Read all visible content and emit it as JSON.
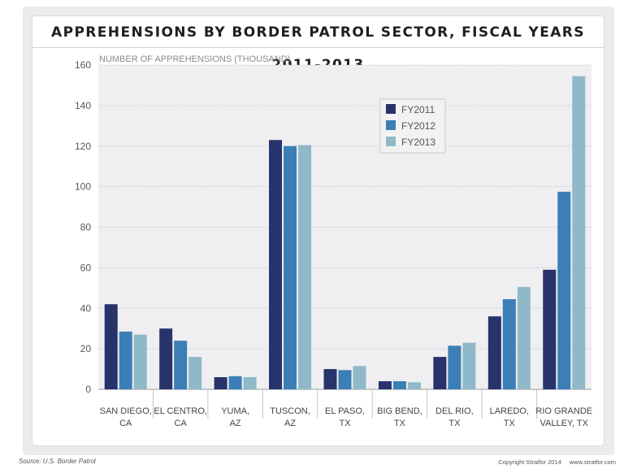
{
  "chart_data": {
    "type": "bar",
    "title": "APPREHENSIONS BY BORDER PATROL SECTOR, FISCAL YEARS 2011-2013",
    "ylabel": "NUMBER OF APPREHENSIONS (THOUSAND)",
    "xlabel": "",
    "ylim": [
      0,
      160
    ],
    "yticks": [
      0,
      20,
      40,
      60,
      80,
      100,
      120,
      140,
      160
    ],
    "grid": true,
    "legend_position": "top-center",
    "categories": [
      [
        "SAN DIEGO,",
        "CA"
      ],
      [
        "EL CENTRO,",
        "CA"
      ],
      [
        "YUMA,",
        "AZ"
      ],
      [
        "TUSCON,",
        "AZ"
      ],
      [
        "EL PASO,",
        "TX"
      ],
      [
        "BIG BEND,",
        "TX"
      ],
      [
        "DEL RIO,",
        "TX"
      ],
      [
        "LAREDO,",
        "TX"
      ],
      [
        "RIO GRANDE",
        "VALLEY, TX"
      ]
    ],
    "series": [
      {
        "name": "FY2011",
        "color": "#28336b",
        "values": [
          42,
          30,
          6,
          123,
          10,
          4,
          16,
          36,
          59
        ]
      },
      {
        "name": "FY2012",
        "color": "#3b7fb6",
        "values": [
          28.5,
          24,
          6.5,
          120,
          9.5,
          4,
          21.5,
          44.5,
          97.5
        ]
      },
      {
        "name": "FY2013",
        "color": "#8fb9c9",
        "values": [
          27,
          16,
          6,
          120.5,
          11.5,
          3.5,
          23,
          50.5,
          154.5
        ]
      }
    ]
  },
  "footer": {
    "source": "Source: U.S. Border Patrol",
    "copyright": "Copyright Stratfor 2014",
    "website": "www.stratfor.com"
  }
}
